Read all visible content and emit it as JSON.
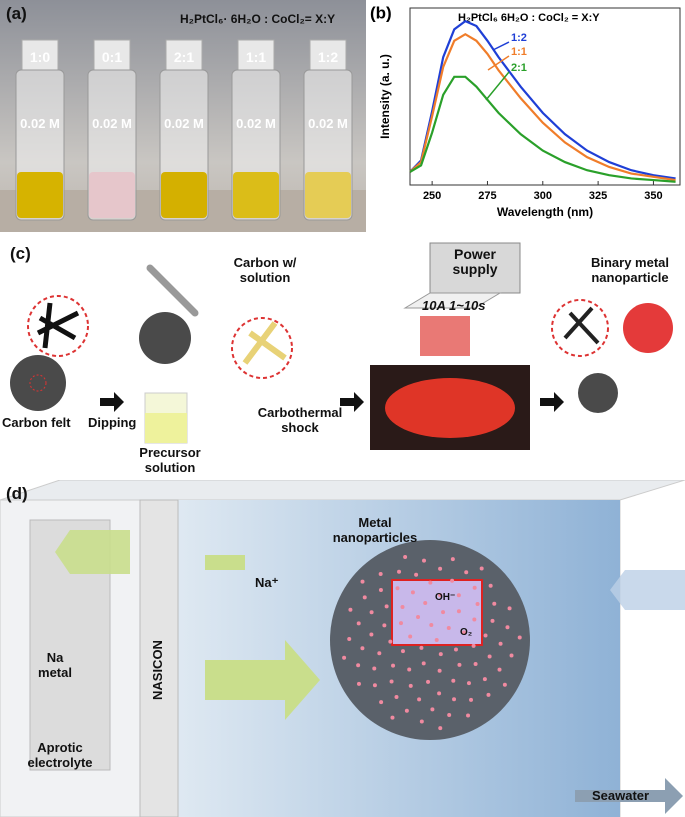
{
  "panel_a": {
    "label": "(a)",
    "title": "H₂PtCl₆· 6H₂O : CoCl₂= X:Y",
    "vials": [
      {
        "ratio": "1:0",
        "concentration": "0.02 M"
      },
      {
        "ratio": "0:1",
        "concentration": "0.02 M"
      },
      {
        "ratio": "2:1",
        "concentration": "0.02 M"
      },
      {
        "ratio": "1:1",
        "concentration": "0.02 M"
      },
      {
        "ratio": "1:2",
        "concentration": "0.02 M"
      }
    ]
  },
  "chart_data": {
    "type": "line",
    "panel_label": "(b)",
    "title": "H₂PtCl₆ 6H₂O : CoCl₂ = X:Y",
    "x_label": "Wavelength (nm)",
    "y_label": "Intensity (a. u.)",
    "x": [
      240,
      245,
      250,
      255,
      260,
      265,
      270,
      275,
      280,
      290,
      300,
      310,
      320,
      330,
      340,
      350,
      360
    ],
    "series": [
      {
        "name": "1:2",
        "color": "#1f3fd6",
        "values": [
          8,
          15,
          45,
          78,
          95,
          100,
          97,
          88,
          78,
          60,
          44,
          31,
          21,
          14,
          9,
          6,
          4
        ]
      },
      {
        "name": "1:1",
        "color": "#f07d2a",
        "values": [
          8,
          14,
          42,
          72,
          88,
          92,
          88,
          80,
          70,
          53,
          38,
          26,
          17,
          11,
          7,
          5,
          3
        ]
      },
      {
        "name": "2:1",
        "color": "#2aa02a",
        "values": [
          8,
          12,
          32,
          55,
          66,
          66,
          60,
          52,
          44,
          31,
          21,
          14,
          9,
          6,
          4,
          3,
          2
        ]
      }
    ],
    "xlim": [
      240,
      362
    ],
    "ylim": [
      0,
      108
    ],
    "xticks": [
      250,
      275,
      300,
      325,
      350
    ]
  },
  "panel_c": {
    "label": "(c)",
    "carbon_felt": "Carbon felt",
    "dipping": "Dipping",
    "carbon_solution": "Carbon w/ solution",
    "precursor": "Precursor solution",
    "carbothermal": "Carbothermal shock",
    "power_supply": "Power supply",
    "pulse": "10A 1~10s",
    "binary": "Binary metal nanoparticle"
  },
  "panel_d": {
    "label": "(d)",
    "metal_np": "Metal nanoparticles",
    "na_ion": "Na⁺",
    "oh": "OH⁻",
    "o2": "O₂",
    "na_metal": "Na metal",
    "nasicon": "NASICON",
    "aprotic": "Aprotic electrolyte",
    "seawater": "Seawater"
  }
}
